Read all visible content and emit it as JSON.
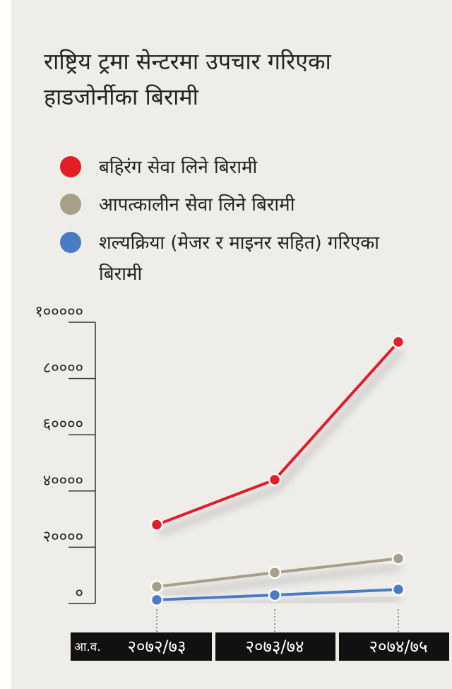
{
  "chart_data": {
    "type": "line",
    "title": "राष्ट्रिय ट्रमा सेन्टरमा उपचार गरिएका हाडजोर्नीका बिरामी",
    "x_label": "आ.व.",
    "categories": [
      "२०७२/७३",
      "२०७३/७४",
      "२०७४/७५"
    ],
    "series": [
      {
        "name": "बहिरंग सेवा लिने बिरामी",
        "color": "#e31e25",
        "values": [
          28000,
          44000,
          93000
        ]
      },
      {
        "name": "आपत्कालीन सेवा लिने बिरामी",
        "color": "#a89f8a",
        "values": [
          6000,
          11000,
          16000
        ]
      },
      {
        "name": "शल्यक्रिया (मेजर र माइनर सहित) गरिएका बिरामी",
        "color": "#4a7cc4",
        "values": [
          1300,
          3000,
          5000
        ]
      }
    ],
    "ylim": [
      0,
      100000
    ],
    "yticks": [
      {
        "value": 0,
        "label": "०"
      },
      {
        "value": 20000,
        "label": "२००००"
      },
      {
        "value": 40000,
        "label": "४००००"
      },
      {
        "value": 60000,
        "label": "६००००"
      },
      {
        "value": 80000,
        "label": "८००००"
      },
      {
        "value": 100000,
        "label": "१०००००"
      }
    ]
  }
}
